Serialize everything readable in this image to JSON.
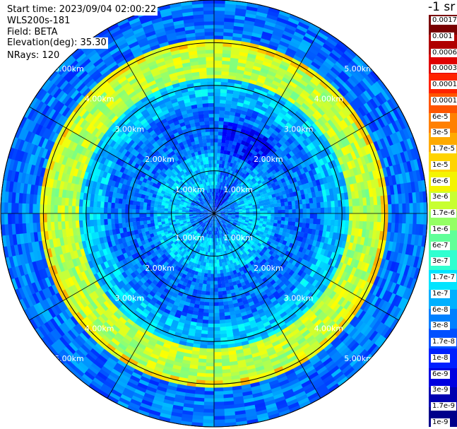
{
  "header": {
    "start_time": "Start time: 2023/09/04 02:00:22",
    "instrument": "WLS200s-181",
    "field": "Field: BETA",
    "elevation": "Elevation(deg): 35.30",
    "nrays": "NRays: 120"
  },
  "colorbar": {
    "unit_label": "-1 sr",
    "colors": [
      "#7a0000",
      "#b00000",
      "#e00000",
      "#ff2200",
      "#ff5500",
      "#ff8000",
      "#ffaa00",
      "#ffd400",
      "#f4f400",
      "#c8ff30",
      "#94ff64",
      "#60ff98",
      "#30ffd0",
      "#00e4ff",
      "#00b0ff",
      "#0080ff",
      "#0050ff",
      "#0020ff",
      "#0000e0",
      "#0000b0",
      "#00008a"
    ],
    "labels": [
      "0.0017",
      "0.001",
      "0.0006",
      "0.0003",
      "0.00017",
      "0.0001",
      "6e-5",
      "3e-5",
      "1.7e-5",
      "1e-5",
      "6e-6",
      "3e-6",
      "1.7e-6",
      "1e-6",
      "6e-7",
      "3e-7",
      "1.7e-7",
      "1e-7",
      "6e-8",
      "3e-8",
      "1.7e-8",
      "1e-8",
      "6e-9",
      "3e-9",
      "1.7e-9",
      "1e-9"
    ]
  },
  "chart_data": {
    "type": "heatmap",
    "projection": "polar (PPI scan)",
    "field": "BETA",
    "colormap": "jet",
    "scale": "log",
    "value_range": [
      1e-09,
      0.0017
    ],
    "n_rays": 120,
    "elevation_deg": 35.3,
    "range_rings_km": [
      1.0,
      2.0,
      3.0,
      4.0,
      5.0
    ],
    "range_ring_labels": [
      "1.00km",
      "2.00km",
      "3.00km",
      "4.00km",
      "5.00km"
    ],
    "spokes_deg": [
      0,
      30,
      60,
      90,
      120,
      150,
      180,
      210,
      240,
      270,
      300,
      330
    ],
    "max_range_km": 5.0,
    "approx_pattern": [
      {
        "range_km": [
          0.0,
          0.6
        ],
        "value": 3e-08
      },
      {
        "range_km": [
          0.6,
          1.4
        ],
        "value": 1e-07
      },
      {
        "range_km": [
          1.4,
          2.6
        ],
        "value": 3e-08
      },
      {
        "range_km": [
          2.6,
          3.2
        ],
        "value": 1e-07
      },
      {
        "range_km": [
          3.2,
          3.9
        ],
        "value": 3e-06
      },
      {
        "range_km": [
          3.9,
          4.05
        ],
        "value": 1e-05
      },
      {
        "range_km": [
          4.05,
          5.0
        ],
        "value": 3e-08
      }
    ]
  }
}
